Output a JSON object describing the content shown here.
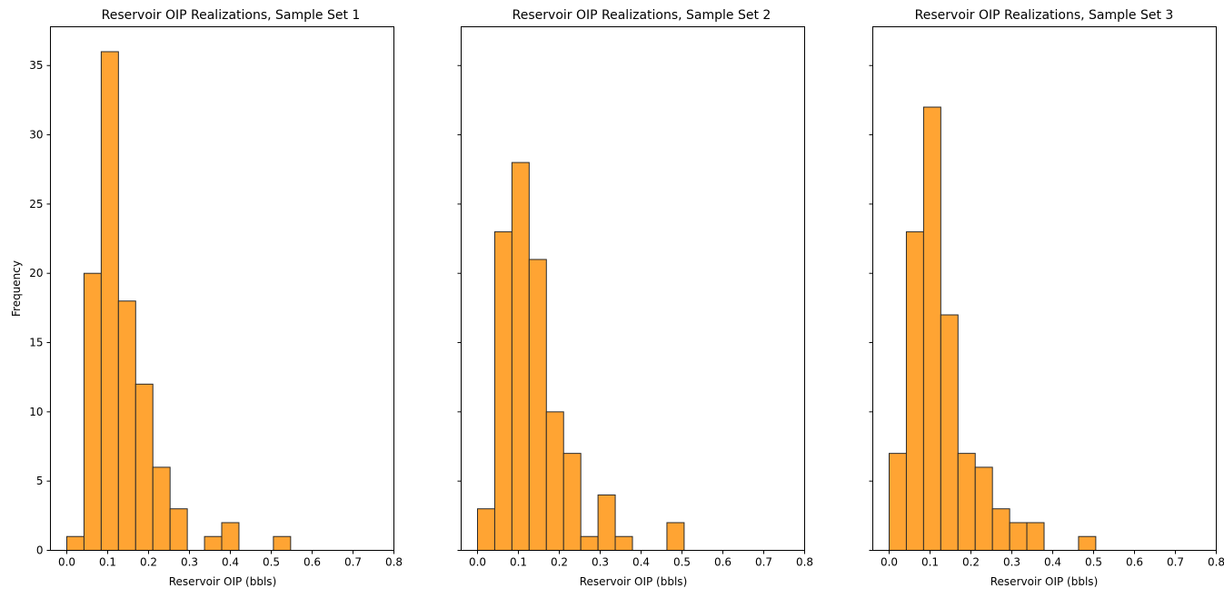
{
  "chart_data": [
    {
      "type": "bar",
      "title": "Reservoir OIP Realizations, Sample Set 1",
      "xlabel": "Reservoir OIP (bbls)",
      "ylabel": "Frequency",
      "xlim": [
        -0.04,
        0.8
      ],
      "ylim": [
        0,
        37.8
      ],
      "bin_width": 0.04211,
      "bin_starts": [
        0.0,
        0.0421,
        0.0842,
        0.1263,
        0.1684,
        0.2105,
        0.2526,
        0.2947,
        0.3368,
        0.3789,
        0.4211,
        0.4632,
        0.5053,
        0.5474,
        0.5895,
        0.6316,
        0.6737,
        0.7158,
        0.7579
      ],
      "values": [
        1,
        20,
        36,
        18,
        12,
        6,
        3,
        0,
        1,
        2,
        0,
        0,
        1,
        0,
        0,
        0,
        0,
        0,
        0
      ],
      "xticks": [
        "0.0",
        "0.1",
        "0.2",
        "0.3",
        "0.4",
        "0.5",
        "0.6",
        "0.7",
        "0.8"
      ],
      "yticks": [
        "0",
        "5",
        "10",
        "15",
        "20",
        "25",
        "30",
        "35"
      ],
      "show_ytick_labels": true,
      "bar_color": "#FFA433",
      "edge_color": "#2a2a2a"
    },
    {
      "type": "bar",
      "title": "Reservoir OIP Realizations, Sample Set 2",
      "xlabel": "Reservoir OIP (bbls)",
      "ylabel": "",
      "xlim": [
        -0.04,
        0.8
      ],
      "ylim": [
        0,
        37.8
      ],
      "bin_width": 0.04211,
      "bin_starts": [
        0.0,
        0.0421,
        0.0842,
        0.1263,
        0.1684,
        0.2105,
        0.2526,
        0.2947,
        0.3368,
        0.3789,
        0.4211,
        0.4632,
        0.5053,
        0.5474,
        0.5895,
        0.6316,
        0.6737,
        0.7158,
        0.7579
      ],
      "values": [
        3,
        23,
        28,
        21,
        10,
        7,
        1,
        4,
        1,
        0,
        0,
        2,
        0,
        0,
        0,
        0,
        0,
        0,
        0
      ],
      "xticks": [
        "0.0",
        "0.1",
        "0.2",
        "0.3",
        "0.4",
        "0.5",
        "0.6",
        "0.7",
        "0.8"
      ],
      "yticks": [
        "0",
        "5",
        "10",
        "15",
        "20",
        "25",
        "30",
        "35"
      ],
      "show_ytick_labels": false,
      "bar_color": "#FFA433",
      "edge_color": "#2a2a2a"
    },
    {
      "type": "bar",
      "title": "Reservoir OIP Realizations, Sample Set 3",
      "xlabel": "Reservoir OIP (bbls)",
      "ylabel": "",
      "xlim": [
        -0.04,
        0.8
      ],
      "ylim": [
        0,
        37.8
      ],
      "bin_width": 0.04211,
      "bin_starts": [
        0.0,
        0.0421,
        0.0842,
        0.1263,
        0.1684,
        0.2105,
        0.2526,
        0.2947,
        0.3368,
        0.3789,
        0.4211,
        0.4632,
        0.5053,
        0.5474,
        0.5895,
        0.6316,
        0.6737,
        0.7158,
        0.7579
      ],
      "values": [
        7,
        23,
        32,
        17,
        7,
        6,
        3,
        2,
        2,
        0,
        0,
        1,
        0,
        0,
        0,
        0,
        0,
        0,
        0
      ],
      "xticks": [
        "0.0",
        "0.1",
        "0.2",
        "0.3",
        "0.4",
        "0.5",
        "0.6",
        "0.7",
        "0.8"
      ],
      "yticks": [
        "0",
        "5",
        "10",
        "15",
        "20",
        "25",
        "30",
        "35"
      ],
      "show_ytick_labels": false,
      "bar_color": "#FFA433",
      "edge_color": "#2a2a2a"
    }
  ]
}
